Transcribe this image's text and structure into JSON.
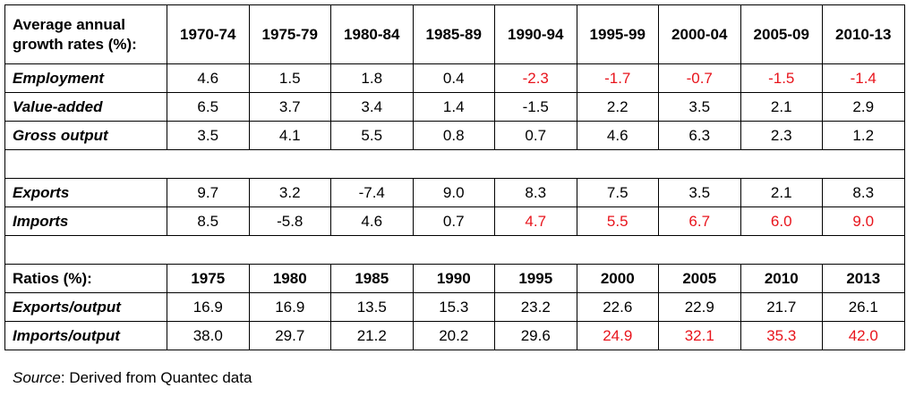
{
  "table": {
    "growth_header_line1": "Average annual",
    "growth_header_line2": "growth rates (%):",
    "periods": [
      "1970-74",
      "1975-79",
      "1980-84",
      "1985-89",
      "1990-94",
      "1995-99",
      "2000-04",
      "2005-09",
      "2010-13"
    ],
    "growth_rows": [
      {
        "label": "Employment",
        "values": [
          "4.6",
          "1.5",
          "1.8",
          "0.4",
          "-2.3",
          "-1.7",
          "-0.7",
          "-1.5",
          "-1.4"
        ],
        "red_from": 4
      },
      {
        "label": "Value-added",
        "values": [
          "6.5",
          "3.7",
          "3.4",
          "1.4",
          "-1.5",
          "2.2",
          "3.5",
          "2.1",
          "2.9"
        ],
        "red_from": 9
      },
      {
        "label": "Gross output",
        "values": [
          "3.5",
          "4.1",
          "5.5",
          "0.8",
          "0.7",
          "4.6",
          "6.3",
          "2.3",
          "1.2"
        ],
        "red_from": 9
      }
    ],
    "trade_rows": [
      {
        "label": "Exports",
        "values": [
          "9.7",
          "3.2",
          "-7.4",
          "9.0",
          "8.3",
          "7.5",
          "3.5",
          "2.1",
          "8.3"
        ],
        "red_from": 9
      },
      {
        "label": "Imports",
        "values": [
          "8.5",
          "-5.8",
          "4.6",
          "0.7",
          "4.7",
          "5.5",
          "6.7",
          "6.0",
          "9.0"
        ],
        "red_from": 4
      }
    ],
    "ratios_label": "Ratios (%):",
    "years": [
      "1975",
      "1980",
      "1985",
      "1990",
      "1995",
      "2000",
      "2005",
      "2010",
      "2013"
    ],
    "ratio_rows": [
      {
        "label": "Exports/output",
        "values": [
          "16.9",
          "16.9",
          "13.5",
          "15.3",
          "23.2",
          "22.6",
          "22.9",
          "21.7",
          "26.1"
        ],
        "red_from": 9
      },
      {
        "label": "Imports/output",
        "values": [
          "38.0",
          "29.7",
          "21.2",
          "20.2",
          "29.6",
          "24.9",
          "32.1",
          "35.3",
          "42.0"
        ],
        "red_from": 5
      }
    ]
  },
  "source": {
    "prefix": "Source",
    "text": ": Derived from Quantec data"
  },
  "colors": {
    "highlight": "#e8141c",
    "text": "#000000",
    "border": "#000000"
  }
}
